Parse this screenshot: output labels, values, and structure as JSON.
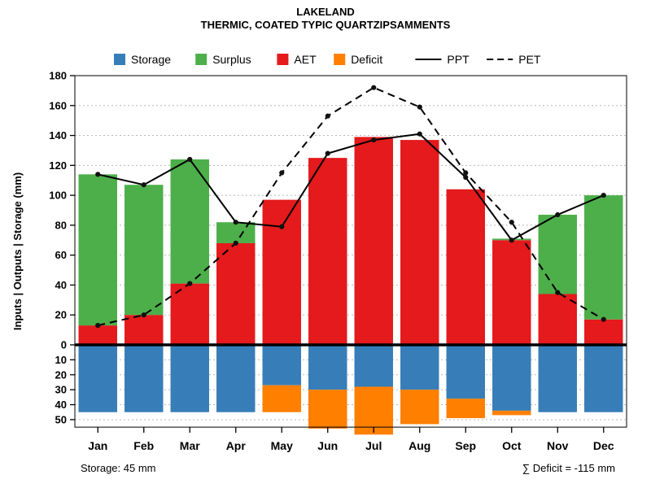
{
  "chart_data": {
    "type": "bar",
    "title": "LAKELAND",
    "subtitle": "THERMIC, COATED TYPIC QUARTZIPSAMMENTS",
    "ylabel": "Inputs | Outputs | Storage  (mm)",
    "footer_left": "Storage: 45 mm",
    "footer_right": "∑ Deficit = -115 mm",
    "categories": [
      "Jan",
      "Feb",
      "Mar",
      "Apr",
      "May",
      "Jun",
      "Jul",
      "Aug",
      "Sep",
      "Oct",
      "Nov",
      "Dec"
    ],
    "series": [
      {
        "name": "Storage",
        "color": "#377EB8",
        "direction": "down",
        "values": [
          45,
          45,
          45,
          45,
          27,
          30,
          28,
          30,
          36,
          44,
          45,
          45
        ]
      },
      {
        "name": "Surplus",
        "color": "#4DAF4A",
        "direction": "up",
        "values": [
          101,
          87,
          83,
          14,
          0,
          0,
          0,
          0,
          0,
          1,
          53,
          83
        ]
      },
      {
        "name": "AET",
        "color": "#E41A1C",
        "direction": "up",
        "values": [
          13,
          20,
          41,
          68,
          97,
          125,
          139,
          137,
          104,
          70,
          34,
          17
        ]
      },
      {
        "name": "Deficit",
        "color": "#FF7F00",
        "direction": "down",
        "values": [
          0,
          0,
          0,
          0,
          18,
          26,
          32,
          23,
          13,
          3,
          0,
          0
        ]
      }
    ],
    "lines": [
      {
        "name": "PPT",
        "style": "solid",
        "color": "#000000",
        "values": [
          114,
          107,
          124,
          82,
          79,
          128,
          137,
          141,
          112,
          70,
          87,
          100
        ]
      },
      {
        "name": "PET",
        "style": "dashed",
        "color": "#000000",
        "values": [
          13,
          20,
          41,
          68,
          115,
          153,
          172,
          159,
          115,
          82,
          35,
          17
        ]
      }
    ],
    "y_ticks_top": [
      0,
      20,
      40,
      60,
      80,
      100,
      120,
      140,
      160,
      180
    ],
    "y_ticks_bottom": [
      10,
      20,
      30,
      40,
      50
    ],
    "ylim_top": 180,
    "ylim_bottom": -55,
    "grid": true,
    "legend_position": "top"
  }
}
